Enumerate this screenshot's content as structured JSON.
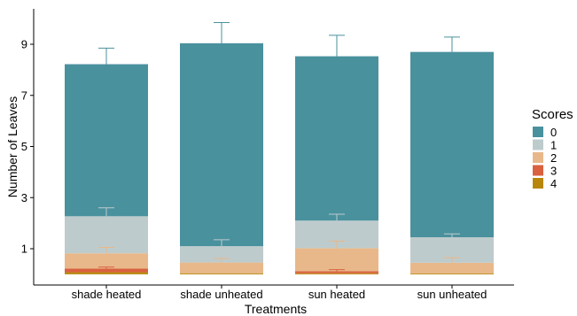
{
  "chart_data": {
    "type": "bar",
    "stacked": true,
    "title": "",
    "xlabel": "Treatments",
    "ylabel": "Number of Leaves",
    "ylim": [
      0,
      10
    ],
    "yticks": [
      "1",
      "3",
      "5",
      "7",
      "9"
    ],
    "categories": [
      "shade heated",
      "shade unheated",
      "sun heated",
      "sun unheated"
    ],
    "legend": {
      "title": "Scores",
      "position": "right"
    },
    "grid": false,
    "series": [
      {
        "name": "4",
        "color": "#B8860B",
        "values": [
          0.08,
          0.04,
          0.04,
          0.03
        ]
      },
      {
        "name": "3",
        "color": "#D9613F",
        "values": [
          0.14,
          0.0,
          0.08,
          0.0
        ]
      },
      {
        "name": "2",
        "color": "#E8B88A",
        "values": [
          0.6,
          0.42,
          0.9,
          0.42
        ]
      },
      {
        "name": "1",
        "color": "#BECBCC",
        "values": [
          1.45,
          0.64,
          1.08,
          1.0
        ]
      },
      {
        "name": "0",
        "color": "#4A919E",
        "values": [
          5.95,
          7.94,
          6.43,
          7.25
        ]
      }
    ],
    "error_bars": [
      {
        "category": "shade heated",
        "series": "0",
        "mean": 8.22,
        "upper": 8.85
      },
      {
        "category": "shade heated",
        "series": "1",
        "mean": 2.27,
        "upper": 2.6
      },
      {
        "category": "shade heated",
        "series": "2",
        "mean": 0.82,
        "upper": 1.05
      },
      {
        "category": "shade heated",
        "series": "3",
        "mean": 0.22,
        "upper": 0.28
      },
      {
        "category": "shade unheated",
        "series": "0",
        "mean": 9.04,
        "upper": 9.85
      },
      {
        "category": "shade unheated",
        "series": "1",
        "mean": 1.1,
        "upper": 1.35
      },
      {
        "category": "shade unheated",
        "series": "2",
        "mean": 0.46,
        "upper": 0.62
      },
      {
        "category": "sun heated",
        "series": "0",
        "mean": 8.53,
        "upper": 9.35
      },
      {
        "category": "sun heated",
        "series": "1",
        "mean": 2.1,
        "upper": 2.35
      },
      {
        "category": "sun heated",
        "series": "2",
        "mean": 1.02,
        "upper": 1.3
      },
      {
        "category": "sun heated",
        "series": "3",
        "mean": 0.12,
        "upper": 0.18
      },
      {
        "category": "sun unheated",
        "series": "0",
        "mean": 8.7,
        "upper": 9.28
      },
      {
        "category": "sun unheated",
        "series": "1",
        "mean": 1.45,
        "upper": 1.58
      },
      {
        "category": "sun unheated",
        "series": "2",
        "mean": 0.45,
        "upper": 0.65
      }
    ]
  }
}
